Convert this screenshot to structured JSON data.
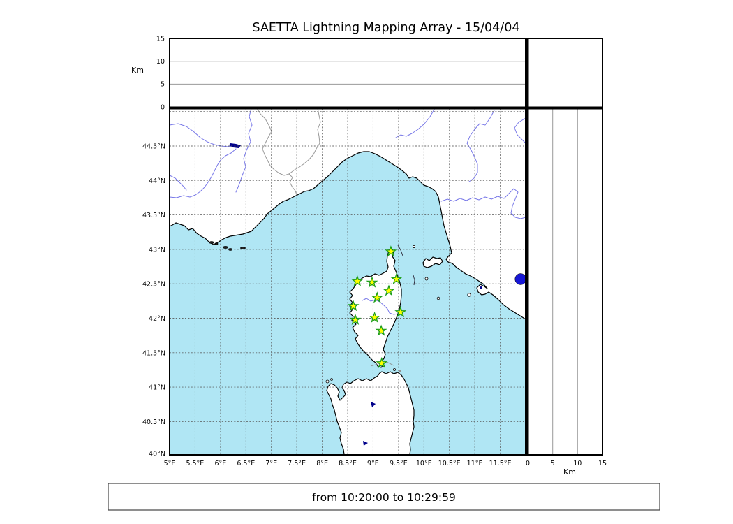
{
  "chart_data": {
    "type": "scatter",
    "title": "SAETTA Lightning Mapping Array - 15/04/04",
    "date": "15/04/04",
    "time_window": "from 10:20:00 to 10:29:59",
    "map": {
      "lon_range": [
        5,
        12
      ],
      "lat_range": [
        40,
        45.03
      ],
      "grid": true,
      "lon_tick_labels": [
        "5°E",
        "5.5°E",
        "6°E",
        "6.5°E",
        "7°E",
        "7.5°E",
        "8°E",
        "8.5°E",
        "9°E",
        "9.5°E",
        "10°E",
        "10.5°E",
        "11°E",
        "11.5°E"
      ],
      "lat_tick_labels": [
        "44.5°N",
        "44°N",
        "43.5°N",
        "43°N",
        "42.5°N",
        "42°N",
        "41.5°N",
        "41°N",
        "40.5°N",
        "40°N"
      ]
    },
    "altitude_axis": {
      "label": "Km",
      "range_km": [
        0,
        15
      ],
      "tick_labels": [
        "0",
        "5",
        "10",
        "15"
      ],
      "gridlines_km": [
        5,
        10
      ]
    },
    "stations": {
      "name": "LMA stations",
      "marker": "star",
      "points": [
        {
          "lon": 9.35,
          "lat": 42.95
        },
        {
          "lon": 8.69,
          "lat": 42.52
        },
        {
          "lon": 8.98,
          "lat": 42.5
        },
        {
          "lon": 9.46,
          "lat": 42.55
        },
        {
          "lon": 9.31,
          "lat": 42.38
        },
        {
          "lon": 9.08,
          "lat": 42.28
        },
        {
          "lon": 8.61,
          "lat": 42.16
        },
        {
          "lon": 9.54,
          "lat": 42.07
        },
        {
          "lon": 9.03,
          "lat": 41.99
        },
        {
          "lon": 8.65,
          "lat": 41.96
        },
        {
          "lon": 9.16,
          "lat": 41.8
        },
        {
          "lon": 9.17,
          "lat": 41.33
        }
      ]
    },
    "events": {
      "name": "lightning sources",
      "marker": "circle",
      "points": [
        {
          "lon": 11.9,
          "lat": 42.55
        }
      ]
    },
    "colors": {
      "sea": "#b0e6f4",
      "land": "#ffffff",
      "coast": "#000000",
      "river": "#7878e8",
      "lake": "#00008b",
      "grid": "#555555",
      "station_fill": "#ffff00",
      "station_edge": "#1e9e1e",
      "event": "#1717d6"
    }
  }
}
